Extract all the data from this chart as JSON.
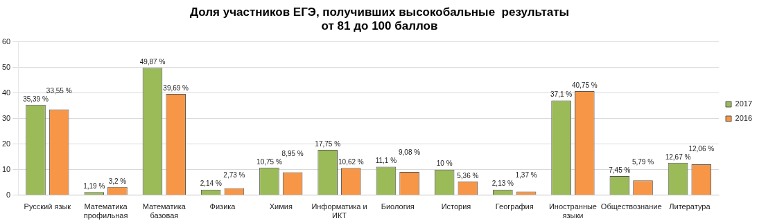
{
  "chart_data": {
    "type": "bar",
    "title": "Доля участников ЕГЭ, получивших высокобальные  результаты\nот 81 до 100 баллов",
    "categories": [
      "Русский язык",
      "Математика профильная",
      "Математика базовая",
      "Физика",
      "Химия",
      "Информатика и ИКТ",
      "Биология",
      "История",
      "География",
      "Иностранные языки",
      "Обществознание",
      "Литература"
    ],
    "series": [
      {
        "name": "2017",
        "color": "#9bbb59",
        "values": [
          35.39,
          1.19,
          49.87,
          2.14,
          10.75,
          17.75,
          11.1,
          10,
          2.13,
          37.1,
          7.45,
          12.67
        ],
        "value_labels": [
          "35,39 %",
          "1,19 %",
          "49,87 %",
          "2,14 %",
          "10,75 %",
          "17,75 %",
          "11,1 %",
          "10 %",
          "2,13 %",
          "37,1 %",
          "7,45 %",
          "12,67 %"
        ]
      },
      {
        "name": "2016",
        "color": "#f79646",
        "values": [
          33.55,
          3.2,
          39.69,
          2.73,
          8.95,
          10.62,
          9.08,
          5.36,
          1.37,
          40.75,
          5.79,
          12.06
        ],
        "value_labels": [
          "33,55 %",
          "3,2 %",
          "39,69 %",
          "2,73 %",
          "8,95 %",
          "10,62 %",
          "9,08 %",
          "5,36 %",
          "1,37 %",
          "40,75 %",
          "5,79 %",
          "12,06 %"
        ]
      }
    ],
    "ylim": [
      0,
      60
    ],
    "yticks": [
      0,
      10,
      20,
      30,
      40,
      50,
      60
    ],
    "grid": "y",
    "legend": "right"
  }
}
